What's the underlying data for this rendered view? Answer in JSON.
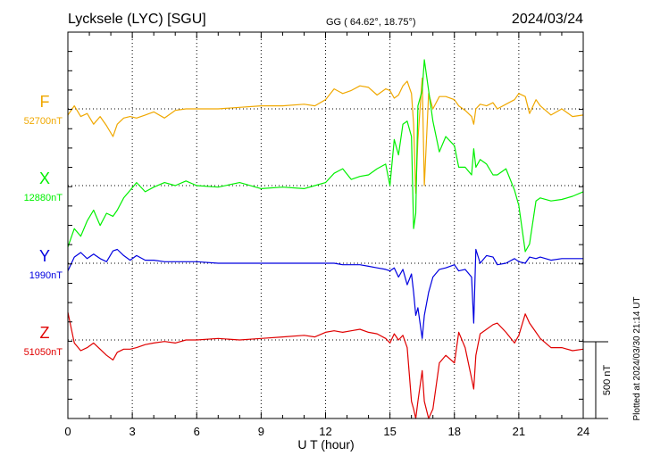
{
  "header": {
    "station": "Lycksele (LYC)  [SGU]",
    "coords": "GG ( 64.62°,  18.75°)",
    "date": "2024/03/24"
  },
  "footer": {
    "plotted": "Plotted at 2024/03/30 21:14 UT"
  },
  "scale": {
    "label": "500 nT",
    "nT": 500
  },
  "chart_data": {
    "type": "line",
    "xlabel": "U T (hour)",
    "xlim": [
      0,
      24
    ],
    "xticks": [
      "0",
      "3",
      "6",
      "9",
      "12",
      "15",
      "18",
      "21",
      "24"
    ],
    "grid": true,
    "series": [
      {
        "name": "F",
        "baseline_label": "52700nT",
        "baseline_nT": 52700,
        "color": "#f0a800",
        "x": [
          0,
          0.3,
          0.6,
          0.9,
          1.2,
          1.5,
          1.8,
          2.1,
          2.3,
          2.6,
          2.9,
          3.2,
          3.6,
          4.0,
          4.5,
          5.0,
          5.5,
          6.0,
          7.0,
          8.0,
          9.0,
          10.0,
          11.0,
          11.5,
          12.0,
          12.4,
          12.8,
          13.2,
          13.6,
          14.0,
          14.4,
          14.8,
          15.0,
          15.2,
          15.4,
          15.6,
          15.8,
          16.0,
          16.1,
          16.2,
          16.3,
          16.5,
          16.6,
          16.8,
          17.0,
          17.3,
          17.6,
          18.0,
          18.2,
          18.5,
          18.8,
          18.9,
          19.0,
          19.2,
          19.5,
          19.8,
          20.0,
          20.4,
          20.8,
          21.0,
          21.3,
          21.5,
          21.8,
          22.0,
          22.5,
          23.0,
          23.5,
          24.0
        ],
        "y": [
          52660,
          52720,
          52650,
          52670,
          52600,
          52650,
          52590,
          52520,
          52600,
          52640,
          52650,
          52640,
          52660,
          52680,
          52640,
          52690,
          52700,
          52700,
          52700,
          52710,
          52720,
          52720,
          52730,
          52720,
          52760,
          52830,
          52800,
          52820,
          52850,
          52840,
          52790,
          52830,
          52820,
          52770,
          52790,
          52850,
          52880,
          52800,
          52600,
          52150,
          52500,
          52900,
          52200,
          52800,
          52700,
          52780,
          52780,
          52760,
          52720,
          52690,
          52650,
          52600,
          52700,
          52730,
          52720,
          52740,
          52700,
          52730,
          52760,
          52800,
          52780,
          52670,
          52760,
          52720,
          52660,
          52700,
          52650,
          52660
        ]
      },
      {
        "name": "X",
        "baseline_label": "12880nT",
        "baseline_nT": 12880,
        "color": "#00f000",
        "x": [
          0,
          0.3,
          0.6,
          0.9,
          1.2,
          1.5,
          1.8,
          2.1,
          2.3,
          2.6,
          2.9,
          3.2,
          3.6,
          4.0,
          4.5,
          5.0,
          5.5,
          6.0,
          7.0,
          8.0,
          9.0,
          10.0,
          11.0,
          11.5,
          12.0,
          12.4,
          12.8,
          13.2,
          13.6,
          14.0,
          14.4,
          14.8,
          15.0,
          15.2,
          15.4,
          15.6,
          15.8,
          16.0,
          16.1,
          16.2,
          16.3,
          16.5,
          16.6,
          16.8,
          17.0,
          17.3,
          17.6,
          18.0,
          18.2,
          18.5,
          18.8,
          18.9,
          19.0,
          19.2,
          19.5,
          19.8,
          20.0,
          20.4,
          20.8,
          21.0,
          21.3,
          21.5,
          21.8,
          22.0,
          22.5,
          23.0,
          23.5,
          24.0
        ],
        "y": [
          12480,
          12600,
          12550,
          12650,
          12720,
          12620,
          12700,
          12680,
          12720,
          12800,
          12850,
          12900,
          12840,
          12870,
          12900,
          12880,
          12910,
          12880,
          12870,
          12900,
          12860,
          12870,
          12860,
          12880,
          12900,
          12960,
          12990,
          12920,
          12940,
          12950,
          12990,
          13020,
          12880,
          13180,
          13080,
          13280,
          13300,
          13200,
          12600,
          12700,
          13400,
          13500,
          13700,
          13500,
          13300,
          13100,
          13200,
          13140,
          13000,
          13000,
          12950,
          13120,
          13000,
          13050,
          13020,
          12950,
          12950,
          12990,
          12850,
          12750,
          12450,
          12500,
          12780,
          12800,
          12780,
          12790,
          12810,
          12840
        ]
      },
      {
        "name": "Y",
        "baseline_label": "1990nT",
        "baseline_nT": 1990,
        "color": "#0000e0",
        "x": [
          0,
          0.3,
          0.6,
          0.9,
          1.2,
          1.5,
          1.8,
          2.1,
          2.3,
          2.6,
          2.9,
          3.2,
          3.6,
          4.0,
          4.5,
          5.0,
          5.5,
          6.0,
          7.0,
          8.0,
          9.0,
          10.0,
          11.0,
          11.5,
          12.0,
          12.4,
          12.8,
          13.2,
          13.6,
          14.0,
          14.4,
          14.8,
          15.0,
          15.2,
          15.4,
          15.6,
          15.8,
          16.0,
          16.1,
          16.2,
          16.3,
          16.5,
          16.6,
          16.8,
          17.0,
          17.3,
          17.6,
          18.0,
          18.2,
          18.5,
          18.8,
          18.9,
          19.0,
          19.2,
          19.5,
          19.8,
          20.0,
          20.4,
          20.8,
          21.0,
          21.3,
          21.5,
          21.8,
          22.0,
          22.5,
          23.0,
          23.5,
          24.0
        ],
        "y": [
          1940,
          2030,
          2060,
          2020,
          2050,
          2020,
          2000,
          2070,
          2080,
          2040,
          2010,
          2040,
          2010,
          2010,
          2000,
          2000,
          2000,
          2000,
          1990,
          1990,
          1990,
          1990,
          1990,
          1990,
          1990,
          1990,
          1980,
          1980,
          1980,
          1970,
          1960,
          1950,
          1940,
          1960,
          1900,
          1950,
          1850,
          1920,
          1800,
          1650,
          1700,
          1500,
          1650,
          1800,
          1900,
          1950,
          1960,
          1980,
          1940,
          1950,
          1900,
          1600,
          2080,
          1990,
          2040,
          2030,
          1980,
          1990,
          2020,
          2000,
          1990,
          2030,
          2020,
          2030,
          2010,
          2020,
          2020,
          2020
        ]
      },
      {
        "name": "Z",
        "baseline_label": "51050nT",
        "baseline_nT": 51050,
        "color": "#e00000",
        "x": [
          0,
          0.3,
          0.6,
          0.9,
          1.2,
          1.5,
          1.8,
          2.1,
          2.3,
          2.6,
          2.9,
          3.2,
          3.6,
          4.0,
          4.5,
          5.0,
          5.5,
          6.0,
          7.0,
          8.0,
          9.0,
          10.0,
          11.0,
          11.5,
          12.0,
          12.4,
          12.8,
          13.2,
          13.6,
          14.0,
          14.4,
          14.8,
          15.0,
          15.2,
          15.4,
          15.6,
          15.8,
          16.0,
          16.1,
          16.2,
          16.3,
          16.5,
          16.6,
          16.8,
          17.0,
          17.3,
          17.6,
          18.0,
          18.2,
          18.5,
          18.8,
          18.9,
          19.0,
          19.2,
          19.5,
          19.8,
          20.0,
          20.4,
          20.8,
          21.0,
          21.3,
          21.5,
          21.8,
          22.0,
          22.5,
          23.0,
          23.5,
          24.0
        ],
        "y": [
          51230,
          51030,
          50980,
          51000,
          51030,
          50990,
          50950,
          50920,
          50970,
          50990,
          50990,
          51000,
          51020,
          51030,
          51040,
          51030,
          51050,
          51050,
          51060,
          51050,
          51060,
          51070,
          51080,
          51070,
          51100,
          51110,
          51100,
          51110,
          51120,
          51100,
          51090,
          51060,
          51030,
          51090,
          51050,
          51080,
          51000,
          50650,
          50600,
          50500,
          50650,
          50850,
          50650,
          50500,
          50600,
          50900,
          50950,
          50900,
          51100,
          51000,
          50800,
          50730,
          50950,
          51090,
          51120,
          51150,
          51160,
          51100,
          51030,
          51080,
          51220,
          51160,
          51100,
          51060,
          51000,
          51000,
          50980,
          50990
        ]
      }
    ]
  }
}
